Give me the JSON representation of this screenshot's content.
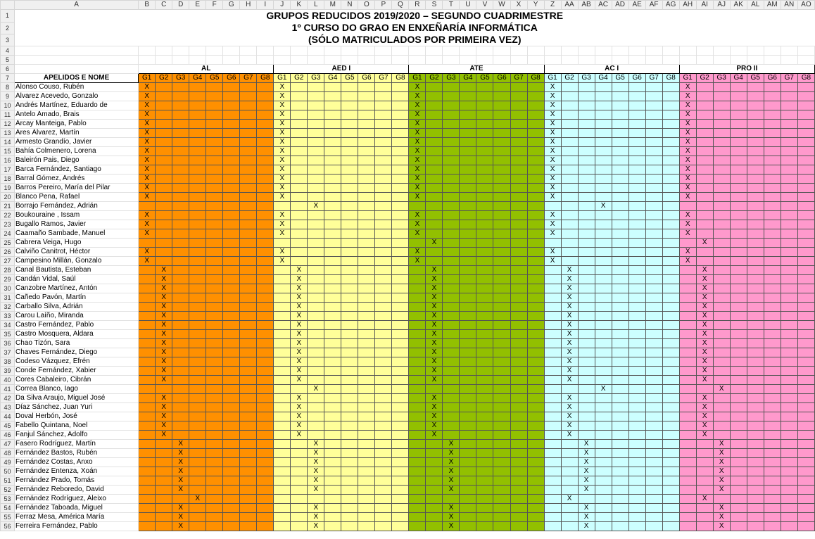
{
  "sheet": {
    "columns": [
      "A",
      "B",
      "C",
      "D",
      "E",
      "F",
      "G",
      "H",
      "I",
      "J",
      "K",
      "L",
      "M",
      "N",
      "O",
      "P",
      "Q",
      "R",
      "S",
      "T",
      "U",
      "V",
      "W",
      "X",
      "Y",
      "Z",
      "AA",
      "AB",
      "AC",
      "AD",
      "AE",
      "AF",
      "AG",
      "AH",
      "AI",
      "AJ",
      "AK",
      "AL",
      "AM",
      "AN",
      "AO"
    ],
    "title_lines": [
      "GRUPOS REDUCIDOS 2019/2020 – SEGUNDO CUADRIMESTRE",
      "1º CURSO DO GRAO EN ENXEÑARÍA INFORMÁTICA",
      "(SÓLO MATRICULADOS POR PRIMEIRA VEZ)"
    ],
    "name_header": "APELIDOS E NOME",
    "mark": "X",
    "subjects": [
      {
        "name": "AL",
        "color": "#ff9000",
        "cls": "c-al"
      },
      {
        "name": "AED I",
        "color": "#ffff99",
        "cls": "c-aed"
      },
      {
        "name": "ATE",
        "color": "#92c000",
        "cls": "c-ate"
      },
      {
        "name": "AC I",
        "color": "#ccffff",
        "cls": "c-ac"
      },
      {
        "name": "PRO II",
        "color": "#ff99cc",
        "cls": "c-pro"
      }
    ],
    "group_labels": [
      "G1",
      "G2",
      "G3",
      "G4",
      "G5",
      "G6",
      "G7",
      "G8"
    ],
    "students": [
      {
        "row": 8,
        "name": "Alonso Couso, Rubén",
        "groups": [
          1,
          1,
          1,
          1,
          1
        ]
      },
      {
        "row": 9,
        "name": "Álvarez Acevedo, Gonzalo",
        "groups": [
          1,
          1,
          1,
          1,
          1
        ]
      },
      {
        "row": 10,
        "name": "Andrés Martínez, Eduardo de",
        "groups": [
          1,
          1,
          1,
          1,
          1
        ]
      },
      {
        "row": 11,
        "name": "Antelo Amado, Brais",
        "groups": [
          1,
          1,
          1,
          1,
          1
        ]
      },
      {
        "row": 12,
        "name": "Arcay Manteiga, Pablo",
        "groups": [
          1,
          1,
          1,
          1,
          1
        ]
      },
      {
        "row": 13,
        "name": "Ares Álvarez, Martín",
        "groups": [
          1,
          1,
          1,
          1,
          1
        ]
      },
      {
        "row": 14,
        "name": "Armesto Grandío, Javier",
        "groups": [
          1,
          1,
          1,
          1,
          1
        ]
      },
      {
        "row": 15,
        "name": "Bahía Colmenero, Lorena",
        "groups": [
          1,
          1,
          1,
          1,
          1
        ]
      },
      {
        "row": 16,
        "name": "Baleirón Pais, Diego",
        "groups": [
          1,
          1,
          1,
          1,
          1
        ]
      },
      {
        "row": 17,
        "name": "Barca Fernández, Santiago",
        "groups": [
          1,
          1,
          1,
          1,
          1
        ]
      },
      {
        "row": 18,
        "name": "Barral Gómez, Andrés",
        "groups": [
          1,
          1,
          1,
          1,
          1
        ]
      },
      {
        "row": 19,
        "name": "Barros Pereiro, María del Pilar",
        "groups": [
          1,
          1,
          1,
          1,
          1
        ]
      },
      {
        "row": 20,
        "name": "Blanco Pena, Rafael",
        "groups": [
          1,
          1,
          1,
          1,
          1
        ]
      },
      {
        "row": 21,
        "name": "Borrajo Fernández, Adrián",
        "groups": [
          0,
          3,
          0,
          4,
          0
        ]
      },
      {
        "row": 22,
        "name": "Boukouraine , Issam",
        "groups": [
          1,
          1,
          1,
          1,
          1
        ]
      },
      {
        "row": 23,
        "name": "Bugallo Ramos, Javier",
        "groups": [
          1,
          1,
          1,
          1,
          1
        ]
      },
      {
        "row": 24,
        "name": "Caamaño Sambade, Manuel",
        "groups": [
          1,
          1,
          1,
          1,
          1
        ]
      },
      {
        "row": 25,
        "name": "Cabrera Veiga, Hugo",
        "groups": [
          0,
          0,
          2,
          0,
          2
        ]
      },
      {
        "row": 26,
        "name": "Calviño Canitrot, Héctor",
        "groups": [
          1,
          1,
          1,
          1,
          1
        ]
      },
      {
        "row": 27,
        "name": "Campesino Millán, Gonzalo",
        "groups": [
          1,
          1,
          1,
          1,
          1
        ]
      },
      {
        "row": 28,
        "name": "Canal Bautista, Esteban",
        "groups": [
          2,
          2,
          2,
          2,
          2
        ]
      },
      {
        "row": 29,
        "name": "Candán Vidal, Saúl",
        "groups": [
          2,
          2,
          2,
          2,
          2
        ]
      },
      {
        "row": 30,
        "name": "Canzobre Martínez, Antón",
        "groups": [
          2,
          2,
          2,
          2,
          2
        ]
      },
      {
        "row": 31,
        "name": "Cañedo Pavón, Martín",
        "groups": [
          2,
          2,
          2,
          2,
          2
        ]
      },
      {
        "row": 32,
        "name": "Carballo Silva, Adrián",
        "groups": [
          2,
          2,
          2,
          2,
          2
        ]
      },
      {
        "row": 33,
        "name": "Carou Laíño, Miranda",
        "groups": [
          2,
          2,
          2,
          2,
          2
        ]
      },
      {
        "row": 34,
        "name": "Castro Fernández, Pablo",
        "groups": [
          2,
          2,
          2,
          2,
          2
        ]
      },
      {
        "row": 35,
        "name": "Castro Mosquera, Aldara",
        "groups": [
          2,
          2,
          2,
          2,
          2
        ]
      },
      {
        "row": 36,
        "name": "Chao Tizón, Sara",
        "groups": [
          2,
          2,
          2,
          2,
          2
        ]
      },
      {
        "row": 37,
        "name": "Chaves Fernández, Diego",
        "groups": [
          2,
          2,
          2,
          2,
          2
        ]
      },
      {
        "row": 38,
        "name": "Codeso Vázquez, Efrén",
        "groups": [
          2,
          2,
          2,
          2,
          2
        ]
      },
      {
        "row": 39,
        "name": "Conde Fernández, Xabier",
        "groups": [
          2,
          2,
          2,
          2,
          2
        ]
      },
      {
        "row": 40,
        "name": "Cores Cabaleiro, Cibrán",
        "groups": [
          2,
          2,
          2,
          2,
          2
        ]
      },
      {
        "row": 41,
        "name": "Correa Blanco, Iago",
        "groups": [
          0,
          3,
          0,
          4,
          3
        ]
      },
      {
        "row": 42,
        "name": "Da Silva Araujo, Miguel José",
        "groups": [
          2,
          2,
          2,
          2,
          2
        ]
      },
      {
        "row": 43,
        "name": "Díaz Sánchez, Juan Yuri",
        "groups": [
          2,
          2,
          2,
          2,
          2
        ]
      },
      {
        "row": 44,
        "name": "Doval Herbón, José",
        "groups": [
          2,
          2,
          2,
          2,
          2
        ]
      },
      {
        "row": 45,
        "name": "Fabello Quintana, Noel",
        "groups": [
          2,
          2,
          2,
          2,
          2
        ]
      },
      {
        "row": 46,
        "name": "Fanjul Sánchez, Adolfo",
        "groups": [
          2,
          2,
          2,
          2,
          2
        ]
      },
      {
        "row": 47,
        "name": "Fasero Rodríguez, Martín",
        "groups": [
          3,
          3,
          3,
          3,
          3
        ]
      },
      {
        "row": 48,
        "name": "Fernández Bastos, Rubén",
        "groups": [
          3,
          3,
          3,
          3,
          3
        ]
      },
      {
        "row": 49,
        "name": "Fernández Costas, Anxo",
        "groups": [
          3,
          3,
          3,
          3,
          3
        ]
      },
      {
        "row": 50,
        "name": "Fernández Entenza, Xoán",
        "groups": [
          3,
          3,
          3,
          3,
          3
        ]
      },
      {
        "row": 51,
        "name": "Fernández Prado, Tomás",
        "groups": [
          3,
          3,
          3,
          3,
          3
        ]
      },
      {
        "row": 52,
        "name": "Fernández Reboredo, David",
        "groups": [
          3,
          3,
          3,
          3,
          3
        ]
      },
      {
        "row": 53,
        "name": "Fernández Rodríguez, Aleixo",
        "groups": [
          4,
          0,
          0,
          2,
          2
        ]
      },
      {
        "row": 54,
        "name": "Fernández Taboada, Miguel",
        "groups": [
          3,
          3,
          3,
          3,
          3
        ]
      },
      {
        "row": 55,
        "name": "Ferraz Mesa, América María",
        "groups": [
          3,
          3,
          3,
          3,
          3
        ]
      },
      {
        "row": 56,
        "name": "Ferreira Fernández, Pablo",
        "groups": [
          3,
          3,
          3,
          3,
          3
        ]
      }
    ]
  }
}
